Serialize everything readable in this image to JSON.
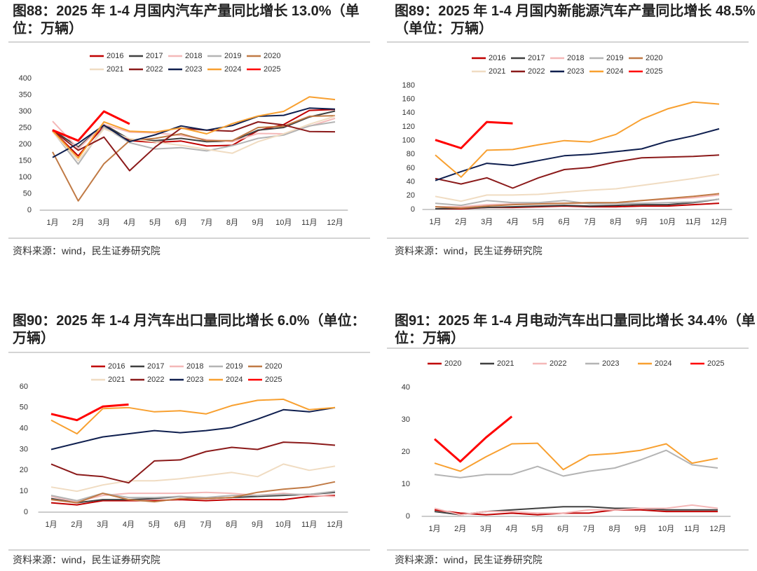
{
  "chart_data": [
    {
      "type": "line",
      "title": "图88：2025 年 1-4 月国内汽车产量同比增长 13.0%（单位：万辆）",
      "source": "资料来源：wind，民生证券研究院",
      "categories": [
        "1月",
        "2月",
        "3月",
        "4月",
        "5月",
        "6月",
        "7月",
        "8月",
        "9月",
        "10月",
        "11月",
        "12月"
      ],
      "ylim": [
        0,
        400
      ],
      "yticks": [
        0,
        50,
        100,
        150,
        200,
        250,
        300,
        350,
        400
      ],
      "series": [
        {
          "name": "2016",
          "color": "#c00000",
          "values": [
            242,
            165,
            256,
            211,
            206,
            210,
            195,
            197,
            242,
            260,
            303,
            306
          ]
        },
        {
          "name": "2017",
          "color": "#404040",
          "values": [
            244,
            192,
            260,
            215,
            211,
            218,
            208,
            210,
            243,
            251,
            283,
            301
          ]
        },
        {
          "name": "2018",
          "color": "#f4b8b8",
          "values": [
            270,
            187,
            260,
            237,
            235,
            227,
            214,
            208,
            233,
            232,
            255,
            279
          ]
        },
        {
          "name": "2019",
          "color": "#b4b4b4",
          "values": [
            240,
            140,
            253,
            205,
            186,
            190,
            180,
            196,
            218,
            228,
            256,
            268
          ]
        },
        {
          "name": "2020",
          "color": "#c07a45",
          "values": [
            177,
            28,
            141,
            211,
            218,
            232,
            211,
            211,
            251,
            255,
            285,
            287
          ]
        },
        {
          "name": "2021",
          "color": "#f0dcc2",
          "values": [
            238,
            150,
            247,
            217,
            207,
            197,
            185,
            173,
            208,
            232,
            261,
            285
          ]
        },
        {
          "name": "2022",
          "color": "#8b1a1a",
          "values": [
            243,
            182,
            222,
            120,
            192,
            249,
            243,
            240,
            268,
            259,
            239,
            238
          ]
        },
        {
          "name": "2023",
          "color": "#0f1f4f",
          "values": [
            160,
            203,
            258,
            208,
            229,
            256,
            243,
            257,
            285,
            288,
            310,
            307
          ]
        },
        {
          "name": "2024",
          "color": "#f8a030",
          "values": [
            241,
            158,
            268,
            240,
            237,
            250,
            232,
            263,
            286,
            300,
            344,
            336
          ]
        },
        {
          "name": "2025",
          "color": "#ff0000",
          "values": [
            243,
            211,
            300,
            262,
            null,
            null,
            null,
            null,
            null,
            null,
            null,
            null
          ]
        }
      ]
    },
    {
      "type": "line",
      "title": "图89：2025 年 1-4 月国内新能源汽车产量同比增长 48.5%（单位：万辆）",
      "source": "资料来源：wind，民生证券研究院",
      "categories": [
        "1月",
        "2月",
        "3月",
        "4月",
        "5月",
        "6月",
        "7月",
        "8月",
        "9月",
        "10月",
        "11月",
        "12月"
      ],
      "ylim": [
        0,
        180
      ],
      "yticks": [
        0,
        20,
        40,
        60,
        80,
        100,
        120,
        140,
        160,
        180
      ],
      "series": [
        {
          "name": "2016",
          "color": "#c00000",
          "values": [
            1,
            1,
            3,
            3,
            4,
            5,
            4,
            4,
            5,
            5,
            7,
            9
          ]
        },
        {
          "name": "2017",
          "color": "#404040",
          "values": [
            1,
            2,
            3,
            4,
            5,
            6,
            5,
            6,
            7,
            7,
            10,
            15
          ]
        },
        {
          "name": "2018",
          "color": "#f4b8b8",
          "values": [
            4,
            4,
            7,
            8,
            9,
            9,
            9,
            10,
            13,
            15,
            17,
            21
          ]
        },
        {
          "name": "2019",
          "color": "#b4b4b4",
          "values": [
            9,
            6,
            13,
            10,
            10,
            13,
            8,
            9,
            9,
            10,
            11,
            15
          ]
        },
        {
          "name": "2020",
          "color": "#c07a45",
          "values": [
            4,
            2,
            5,
            7,
            8,
            9,
            10,
            10,
            13,
            16,
            19,
            23
          ]
        },
        {
          "name": "2021",
          "color": "#f0dcc2",
          "values": [
            19,
            12,
            21,
            21,
            22,
            25,
            28,
            30,
            35,
            40,
            45,
            51
          ]
        },
        {
          "name": "2022",
          "color": "#8b1a1a",
          "values": [
            45,
            37,
            46,
            31,
            46,
            58,
            61,
            69,
            75,
            76,
            77,
            79
          ]
        },
        {
          "name": "2023",
          "color": "#0f1f4f",
          "values": [
            42,
            55,
            67,
            64,
            71,
            78,
            80,
            84,
            88,
            99,
            107,
            117
          ]
        },
        {
          "name": "2024",
          "color": "#f8a030",
          "values": [
            79,
            47,
            86,
            87,
            94,
            100,
            98,
            109,
            131,
            146,
            156,
            153
          ]
        },
        {
          "name": "2025",
          "color": "#ff0000",
          "values": [
            101,
            89,
            127,
            125,
            null,
            null,
            null,
            null,
            null,
            null,
            null,
            null
          ]
        }
      ]
    },
    {
      "type": "line",
      "title": "图90：2025 年 1-4 月汽车出口量同比增长 6.0%（单位：万辆）",
      "source": "资料来源：wind，民生证券研究院",
      "categories": [
        "1月",
        "2月",
        "3月",
        "4月",
        "5月",
        "6月",
        "7月",
        "8月",
        "9月",
        "10月",
        "11月",
        "12月"
      ],
      "ylim": [
        0,
        60
      ],
      "yticks": [
        0,
        10,
        20,
        30,
        40,
        50,
        60
      ],
      "series": [
        {
          "name": "2016",
          "color": "#c00000",
          "values": [
            4.5,
            3.5,
            5.5,
            5.5,
            5.5,
            6,
            5.5,
            6,
            6,
            6,
            7.5,
            8
          ]
        },
        {
          "name": "2017",
          "color": "#404040",
          "values": [
            6.5,
            4.5,
            6,
            6,
            6.5,
            7.5,
            6.5,
            7,
            7.5,
            8,
            8.5,
            9.5
          ]
        },
        {
          "name": "2018",
          "color": "#f4b8b8",
          "values": [
            7.5,
            5,
            8,
            9,
            9,
            9,
            9.5,
            9,
            8,
            9,
            8,
            7.5
          ]
        },
        {
          "name": "2019",
          "color": "#b4b4b4",
          "values": [
            8,
            5.5,
            9,
            7,
            7,
            7.5,
            7,
            8,
            8,
            8.5,
            8.5,
            10
          ]
        },
        {
          "name": "2020",
          "color": "#c07a45",
          "values": [
            6,
            4.5,
            9,
            6,
            5,
            6.5,
            6.5,
            7,
            9.5,
            11,
            12,
            14.5
          ]
        },
        {
          "name": "2021",
          "color": "#f0dcc2",
          "values": [
            12,
            10,
            13,
            15,
            15,
            16,
            17.5,
            19,
            17,
            23,
            20,
            22
          ]
        },
        {
          "name": "2022",
          "color": "#8b1a1a",
          "values": [
            23,
            18,
            17,
            14,
            24.5,
            25,
            29,
            31,
            30,
            33.5,
            33,
            32
          ]
        },
        {
          "name": "2023",
          "color": "#0f1f4f",
          "values": [
            30,
            33,
            36,
            37.5,
            39,
            38,
            39,
            40.5,
            44.5,
            49,
            48,
            50
          ]
        },
        {
          "name": "2024",
          "color": "#f8a030",
          "values": [
            44,
            37.5,
            49.5,
            50,
            48,
            48.5,
            47,
            51,
            53.5,
            54,
            49,
            50
          ]
        },
        {
          "name": "2025",
          "color": "#ff0000",
          "values": [
            47,
            44,
            50.5,
            51.5,
            null,
            null,
            null,
            null,
            null,
            null,
            null,
            null
          ]
        }
      ]
    },
    {
      "type": "line",
      "title": "图91：2025 年 1-4 月电动汽车出口量同比增长 34.4%（单位：万辆）",
      "source": "资料来源：wind，民生证券研究院",
      "categories": [
        "1月",
        "2月",
        "3月",
        "4月",
        "5月",
        "6月",
        "7月",
        "8月",
        "9月",
        "10月",
        "11月",
        "12月"
      ],
      "ylim": [
        0,
        40
      ],
      "yticks": [
        0,
        10,
        20,
        30,
        40
      ],
      "series": [
        {
          "name": "2020",
          "color": "#c00000",
          "values": [
            2,
            1,
            0.5,
            1,
            0.5,
            1,
            1,
            2,
            2,
            1.5,
            1.5,
            1.5
          ]
        },
        {
          "name": "2021",
          "color": "#404040",
          "values": [
            1.5,
            0.5,
            1.5,
            2,
            2.5,
            3,
            3,
            2.5,
            2.5,
            2,
            2,
            2
          ]
        },
        {
          "name": "2022",
          "color": "#f4b8b8",
          "values": [
            2.5,
            0.5,
            1.5,
            1.5,
            1,
            1,
            2,
            2,
            2.5,
            2.5,
            3.5,
            2.5
          ]
        },
        {
          "name": "2023",
          "color": "#b4b4b4",
          "values": [
            13,
            12,
            13,
            13,
            15.5,
            12.5,
            14,
            15,
            17.5,
            20.5,
            16,
            15
          ]
        },
        {
          "name": "2024",
          "color": "#f8a030",
          "values": [
            16.5,
            14,
            18.5,
            22.5,
            22.7,
            14.5,
            19,
            19.5,
            20.5,
            22.5,
            16.5,
            18
          ]
        },
        {
          "name": "2025",
          "color": "#ff0000",
          "values": [
            24,
            17,
            24.5,
            31,
            null,
            null,
            null,
            null,
            null,
            null,
            null,
            null
          ]
        }
      ]
    }
  ]
}
